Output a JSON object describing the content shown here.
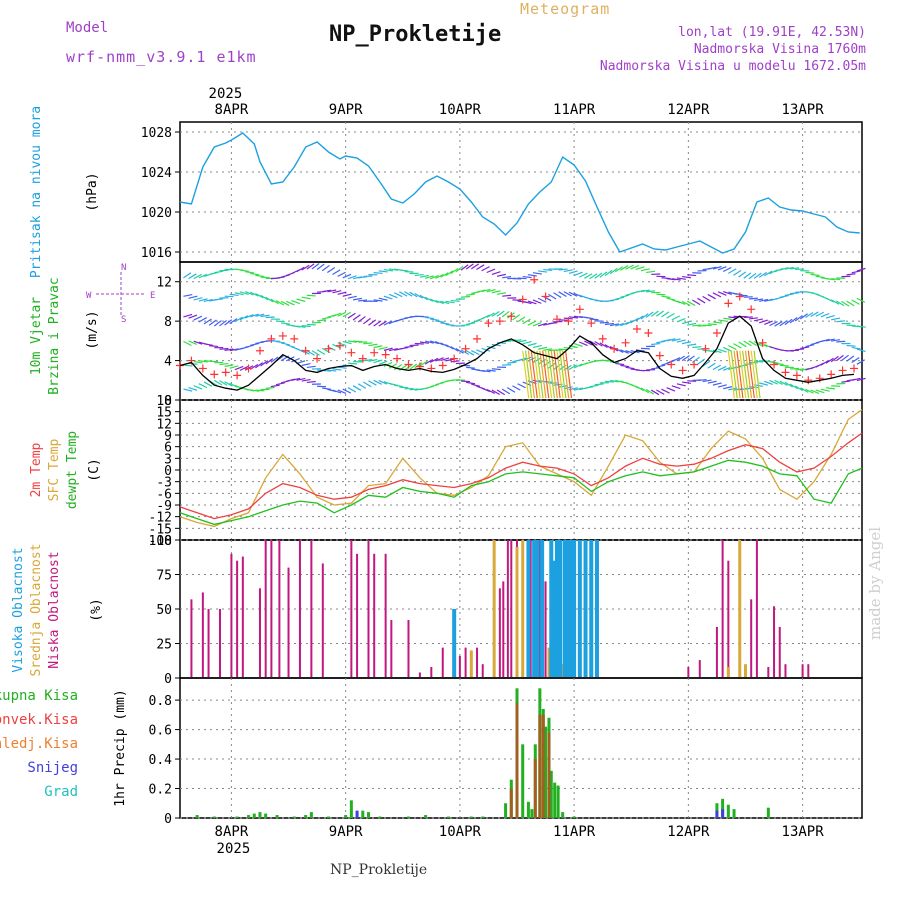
{
  "header": {
    "model_label": "Model",
    "model_name": "wrf-nmm_v3.9.1 e1km",
    "title": "NP_Prokletije",
    "subtitle": "Meteogram",
    "location": "lon,lat (19.91E, 42.53N)",
    "elevation": "Nadmorska Visina 1760m",
    "model_elevation": "Nadmorska Visina u modelu 1672.05m"
  },
  "footer": {
    "station": "NP_Prokletije",
    "credit": "made by Angel"
  },
  "x_axis": {
    "top_year": "2025",
    "bottom_year": "2025",
    "days": [
      "8APR",
      "9APR",
      "10APR",
      "11APR",
      "12APR",
      "13APR"
    ],
    "range_days": [
      7.55,
      13.52
    ]
  },
  "colors": {
    "pressure": "#1ca0e0",
    "wind_speed": "#000000",
    "gust": "#ff3333",
    "temp2m": "#f04040",
    "sfc": "#d8a838",
    "dew": "#20c020",
    "high_cloud": "#1ca0e0",
    "mid_cloud": "#d8a838",
    "low_cloud": "#c0187f",
    "total_precip": "#20b020",
    "conv_precip": "#f04040",
    "frozen": "#f08030",
    "snow": "#4040e0",
    "hail": "#20c0c0"
  },
  "chart_data": [
    {
      "type": "line",
      "panel": "pressure",
      "ylabel_left": "Pritisak na nivou mora",
      "unit": "(hPa)",
      "ylim": [
        1015,
        1029
      ],
      "yticks": [
        1016,
        1020,
        1024,
        1028
      ],
      "series": [
        {
          "name": "Pritisak na nivou mora",
          "x": [
            7.55,
            7.65,
            7.75,
            7.85,
            7.95,
            8.0,
            8.1,
            8.2,
            8.25,
            8.35,
            8.45,
            8.55,
            8.65,
            8.75,
            8.85,
            8.95,
            9.0,
            9.1,
            9.2,
            9.3,
            9.4,
            9.5,
            9.6,
            9.7,
            9.8,
            9.9,
            10.0,
            10.1,
            10.2,
            10.3,
            10.4,
            10.5,
            10.6,
            10.7,
            10.8,
            10.9,
            11.0,
            11.1,
            11.2,
            11.3,
            11.4,
            11.5,
            11.6,
            11.7,
            11.8,
            11.9,
            12.0,
            12.1,
            12.2,
            12.3,
            12.4,
            12.5,
            12.6,
            12.7,
            12.8,
            12.9,
            13.0,
            13.1,
            13.2,
            13.3,
            13.4,
            13.5
          ],
          "values": [
            1021.0,
            1020.8,
            1024.5,
            1026.5,
            1026.9,
            1027.2,
            1027.9,
            1026.8,
            1025.0,
            1022.8,
            1023.0,
            1024.5,
            1026.5,
            1027.0,
            1026.0,
            1025.3,
            1025.6,
            1025.4,
            1024.6,
            1023.0,
            1021.3,
            1020.9,
            1021.8,
            1023.0,
            1023.6,
            1023.0,
            1022.3,
            1021.0,
            1019.5,
            1018.8,
            1017.7,
            1018.9,
            1020.8,
            1022.0,
            1023.0,
            1025.5,
            1024.7,
            1023.1,
            1020.5,
            1018.0,
            1016.0,
            1016.4,
            1016.8,
            1016.3,
            1016.2,
            1016.5,
            1016.8,
            1017.1,
            1016.5,
            1015.9,
            1016.3,
            1018.0,
            1021.0,
            1021.4,
            1020.5,
            1020.2,
            1020.1,
            1019.8,
            1019.5,
            1018.5,
            1018.0,
            1017.9
          ]
        }
      ]
    },
    {
      "type": "line",
      "panel": "wind",
      "ylabel_left": [
        "10m Vjetar",
        "Brzina i Pravac"
      ],
      "unit": "(m/s)",
      "compass": [
        "W",
        "E",
        "N",
        "S"
      ],
      "ylim": [
        0,
        14
      ],
      "yticks": [
        0,
        4,
        8,
        12
      ],
      "series": [
        {
          "name": "speed",
          "x": [
            7.55,
            7.65,
            7.75,
            7.85,
            7.95,
            8.05,
            8.15,
            8.25,
            8.35,
            8.45,
            8.55,
            8.65,
            8.75,
            8.85,
            8.95,
            9.05,
            9.15,
            9.25,
            9.35,
            9.45,
            9.55,
            9.65,
            9.75,
            9.85,
            9.95,
            10.05,
            10.15,
            10.25,
            10.35,
            10.45,
            10.55,
            10.65,
            10.75,
            10.85,
            10.95,
            11.05,
            11.15,
            11.25,
            11.35,
            11.45,
            11.55,
            11.65,
            11.75,
            11.85,
            11.95,
            12.05,
            12.15,
            12.25,
            12.35,
            12.45,
            12.55,
            12.65,
            12.75,
            12.85,
            12.95,
            13.05,
            13.15,
            13.25,
            13.35,
            13.45
          ],
          "values": [
            3.5,
            3.8,
            2.5,
            1.5,
            1.2,
            1.0,
            1.5,
            2.5,
            3.5,
            4.6,
            4.0,
            3.0,
            2.8,
            3.2,
            3.4,
            3.5,
            3.0,
            3.4,
            3.6,
            3.2,
            3.0,
            3.2,
            2.9,
            2.8,
            3.1,
            3.6,
            4.2,
            5.2,
            5.8,
            6.2,
            5.6,
            4.8,
            4.5,
            4.2,
            5.2,
            6.5,
            5.8,
            4.6,
            3.8,
            4.2,
            5.0,
            4.8,
            3.2,
            2.4,
            2.2,
            2.5,
            3.8,
            5.2,
            7.8,
            8.5,
            7.5,
            4.2,
            3.0,
            2.2,
            2.0,
            1.8,
            2.0,
            2.2,
            2.5,
            2.6
          ]
        },
        {
          "name": "gust",
          "x": [
            7.55,
            7.65,
            7.75,
            7.85,
            7.95,
            8.05,
            8.15,
            8.25,
            8.35,
            8.45,
            8.55,
            8.65,
            8.75,
            8.85,
            8.95,
            9.05,
            9.15,
            9.25,
            9.35,
            9.45,
            9.55,
            9.65,
            9.75,
            9.85,
            9.95,
            10.05,
            10.15,
            10.25,
            10.35,
            10.45,
            10.55,
            10.65,
            10.75,
            10.85,
            10.95,
            11.05,
            11.15,
            11.25,
            11.35,
            11.45,
            11.55,
            11.65,
            11.75,
            11.85,
            11.95,
            12.05,
            12.15,
            12.25,
            12.35,
            12.45,
            12.55,
            12.65,
            12.75,
            12.85,
            12.95,
            13.05,
            13.15,
            13.25,
            13.35,
            13.45
          ],
          "values": [
            3.5,
            4.0,
            3.2,
            2.6,
            2.8,
            2.5,
            3.2,
            5.0,
            6.2,
            6.5,
            6.2,
            5.0,
            4.2,
            5.2,
            5.5,
            4.8,
            4.2,
            4.8,
            4.6,
            4.2,
            3.6,
            3.4,
            3.2,
            3.5,
            4.2,
            5.2,
            6.2,
            7.8,
            8.0,
            8.5,
            10.2,
            12.2,
            10.5,
            8.2,
            8.0,
            9.2,
            7.8,
            6.2,
            5.2,
            5.8,
            7.2,
            6.8,
            4.5,
            3.6,
            3.0,
            3.6,
            5.2,
            6.8,
            9.8,
            10.5,
            9.2,
            5.8,
            3.6,
            2.8,
            2.5,
            2.0,
            2.2,
            2.6,
            3.0,
            3.2
          ]
        }
      ]
    },
    {
      "type": "line",
      "panel": "temperature",
      "ylabel_left": [
        "2m Temp",
        "SFC Temp",
        "dewpt Temp"
      ],
      "unit": "(C)",
      "ylim": [
        -18,
        18
      ],
      "yticks": [
        -18,
        -15,
        -12,
        -9,
        -6,
        -3,
        0,
        3,
        6,
        9,
        12,
        15,
        18
      ],
      "series": [
        {
          "name": "2m Temp",
          "x": [
            7.55,
            7.7,
            7.85,
            8.0,
            8.15,
            8.3,
            8.45,
            8.6,
            8.75,
            8.9,
            9.05,
            9.2,
            9.35,
            9.5,
            9.65,
            9.8,
            9.95,
            10.1,
            10.25,
            10.4,
            10.55,
            10.7,
            10.85,
            11.0,
            11.15,
            11.3,
            11.45,
            11.6,
            11.75,
            11.9,
            12.05,
            12.2,
            12.35,
            12.5,
            12.65,
            12.8,
            12.95,
            13.1,
            13.25,
            13.4,
            13.52
          ],
          "values": [
            -9.5,
            -11,
            -12.5,
            -11.5,
            -10,
            -6,
            -3.5,
            -4.5,
            -6.5,
            -7.5,
            -7,
            -5,
            -4,
            -2.5,
            -3.5,
            -4,
            -4.5,
            -3.5,
            -2,
            0.5,
            2,
            1,
            0.5,
            -1,
            -4,
            -2,
            1,
            3,
            1.5,
            1,
            1.5,
            3,
            5,
            6.5,
            5.5,
            2,
            -0.5,
            0.5,
            3.5,
            7,
            9.5
          ]
        },
        {
          "name": "SFC Temp",
          "x": [
            7.55,
            7.7,
            7.85,
            8.0,
            8.15,
            8.3,
            8.45,
            8.6,
            8.75,
            8.9,
            9.05,
            9.2,
            9.35,
            9.5,
            9.65,
            9.8,
            9.95,
            10.1,
            10.25,
            10.4,
            10.55,
            10.7,
            10.85,
            11.0,
            11.15,
            11.3,
            11.45,
            11.6,
            11.75,
            11.9,
            12.05,
            12.2,
            12.35,
            12.5,
            12.65,
            12.8,
            12.95,
            13.1,
            13.25,
            13.4,
            13.52
          ],
          "values": [
            -12,
            -13.5,
            -14.5,
            -12.5,
            -11,
            -2,
            4,
            -1,
            -7,
            -9,
            -8.5,
            -4,
            -3.5,
            3,
            -2,
            -6,
            -6.5,
            -4.5,
            -1.5,
            6,
            7,
            1,
            -1,
            -3,
            -6.5,
            1,
            9,
            7.5,
            2,
            -1,
            -0.5,
            5.5,
            10,
            8,
            3,
            -5,
            -7.5,
            -3,
            4,
            13,
            15.5
          ]
        },
        {
          "name": "dewpt Temp",
          "x": [
            7.55,
            7.7,
            7.85,
            8.0,
            8.15,
            8.3,
            8.45,
            8.6,
            8.75,
            8.9,
            9.05,
            9.2,
            9.35,
            9.5,
            9.65,
            9.8,
            9.95,
            10.1,
            10.25,
            10.4,
            10.55,
            10.7,
            10.85,
            11.0,
            11.15,
            11.3,
            11.45,
            11.6,
            11.75,
            11.9,
            12.05,
            12.2,
            12.35,
            12.5,
            12.65,
            12.8,
            12.95,
            13.1,
            13.25,
            13.4,
            13.52
          ],
          "values": [
            -11,
            -12.5,
            -14,
            -13,
            -12,
            -10.5,
            -9,
            -8,
            -8.5,
            -11,
            -9,
            -6.5,
            -7,
            -4.5,
            -5.5,
            -6,
            -7,
            -4,
            -3,
            -1,
            -0.5,
            -1,
            -1.5,
            -2,
            -5.5,
            -3,
            -1.5,
            -0.5,
            -1.5,
            -1,
            -0.5,
            1,
            2.5,
            2,
            1,
            -1,
            -1.5,
            -7.5,
            -8.5,
            -1,
            0.5
          ]
        }
      ]
    },
    {
      "type": "bar",
      "panel": "cloud",
      "ylabel_left": [
        "Visoka Oblacnost",
        "Srednja Oblacnost",
        "Niska Oblacnost"
      ],
      "unit": "(%)",
      "ylim": [
        0,
        100
      ],
      "yticks": [
        0,
        25,
        50,
        75,
        100
      ],
      "series": [
        {
          "name": "Niska Oblacnost",
          "x": [
            7.65,
            7.75,
            7.8,
            7.9,
            8.0,
            8.05,
            8.1,
            8.25,
            8.3,
            8.35,
            8.42,
            8.5,
            8.6,
            8.7,
            8.8,
            9.05,
            9.1,
            9.2,
            9.25,
            9.35,
            9.4,
            9.55,
            9.65,
            9.75,
            9.85,
            10.0,
            10.05,
            10.1,
            10.15,
            10.2,
            10.35,
            10.38,
            10.42,
            10.45,
            10.5,
            10.55,
            10.62,
            10.7,
            10.75,
            10.85,
            10.95,
            12.0,
            12.1,
            12.25,
            12.3,
            12.35,
            12.45,
            12.55,
            12.6,
            12.7,
            12.75,
            12.8,
            12.85,
            13.0,
            13.05
          ],
          "values": [
            57,
            62,
            50,
            50,
            90,
            85,
            88,
            65,
            100,
            100,
            100,
            80,
            100,
            100,
            83,
            100,
            90,
            100,
            90,
            90,
            42,
            42,
            4,
            8,
            22,
            16,
            22,
            10,
            22,
            10,
            65,
            70,
            100,
            100,
            100,
            100,
            100,
            100,
            70,
            40,
            22,
            8,
            13,
            37,
            100,
            85,
            100,
            57,
            100,
            8,
            52,
            37,
            10,
            10,
            10
          ]
        },
        {
          "name": "Srednja Oblacnost",
          "x": [
            10.1,
            10.3,
            10.5,
            10.55,
            10.6,
            10.65,
            10.72,
            10.78,
            10.9,
            12.35,
            12.45,
            12.5
          ],
          "values": [
            20,
            100,
            95,
            100,
            100,
            100,
            100,
            22,
            10,
            8,
            100,
            10
          ]
        },
        {
          "name": "Visoka Oblacnost",
          "x": [
            9.95,
            10.6,
            10.65,
            10.68,
            10.72,
            10.8,
            10.82,
            10.85,
            10.88,
            10.92,
            10.95,
            10.98,
            11.0,
            11.05,
            11.1,
            11.15,
            11.2
          ],
          "values": [
            50,
            100,
            100,
            100,
            100,
            100,
            85,
            100,
            100,
            100,
            100,
            100,
            100,
            100,
            100,
            100,
            100
          ]
        }
      ]
    },
    {
      "type": "bar",
      "panel": "precip",
      "legend": [
        "Ukupna Kisa",
        "Konvek.Kisa",
        "Zaledj.Kisa",
        "Snijeg",
        "Grad"
      ],
      "ylabel": "1hr Precip (mm)",
      "ylim": [
        0,
        0.95
      ],
      "yticks": [
        0,
        0.2,
        0.4,
        0.6,
        0.8
      ],
      "series": [
        {
          "name": "Ukupna Kisa",
          "x": [
            7.7,
            7.85,
            8.05,
            8.15,
            8.2,
            8.25,
            8.3,
            8.4,
            8.55,
            8.65,
            8.7,
            8.85,
            9.0,
            9.05,
            9.15,
            9.2,
            9.3,
            9.55,
            9.7,
            9.9,
            10.1,
            10.2,
            10.4,
            10.45,
            10.5,
            10.55,
            10.6,
            10.63,
            10.66,
            10.7,
            10.73,
            10.75,
            10.78,
            10.8,
            10.83,
            10.86,
            10.9,
            11.0,
            12.25,
            12.3,
            12.35,
            12.4,
            12.7
          ],
          "values": [
            0.02,
            0.01,
            0.01,
            0.02,
            0.03,
            0.04,
            0.03,
            0.02,
            0.01,
            0.02,
            0.04,
            0.01,
            0.02,
            0.12,
            0.05,
            0.04,
            0.01,
            0.01,
            0.02,
            0.01,
            0.01,
            0.01,
            0.1,
            0.26,
            0.88,
            0.5,
            0.11,
            0.06,
            0.5,
            0.88,
            0.74,
            0.62,
            0.68,
            0.32,
            0.24,
            0.22,
            0.04,
            0.01,
            0.1,
            0.13,
            0.09,
            0.06,
            0.07
          ]
        },
        {
          "name": "Konvek.Kisa",
          "x": [
            10.45,
            10.5,
            10.66,
            10.7,
            10.73,
            10.78
          ],
          "values": [
            0.2,
            0.78,
            0.4,
            0.7,
            0.7,
            0.58
          ]
        },
        {
          "name": "Snijeg",
          "x": [
            9.1,
            12.25,
            12.3
          ],
          "values": [
            0.05,
            0.05,
            0.06
          ]
        }
      ]
    }
  ]
}
